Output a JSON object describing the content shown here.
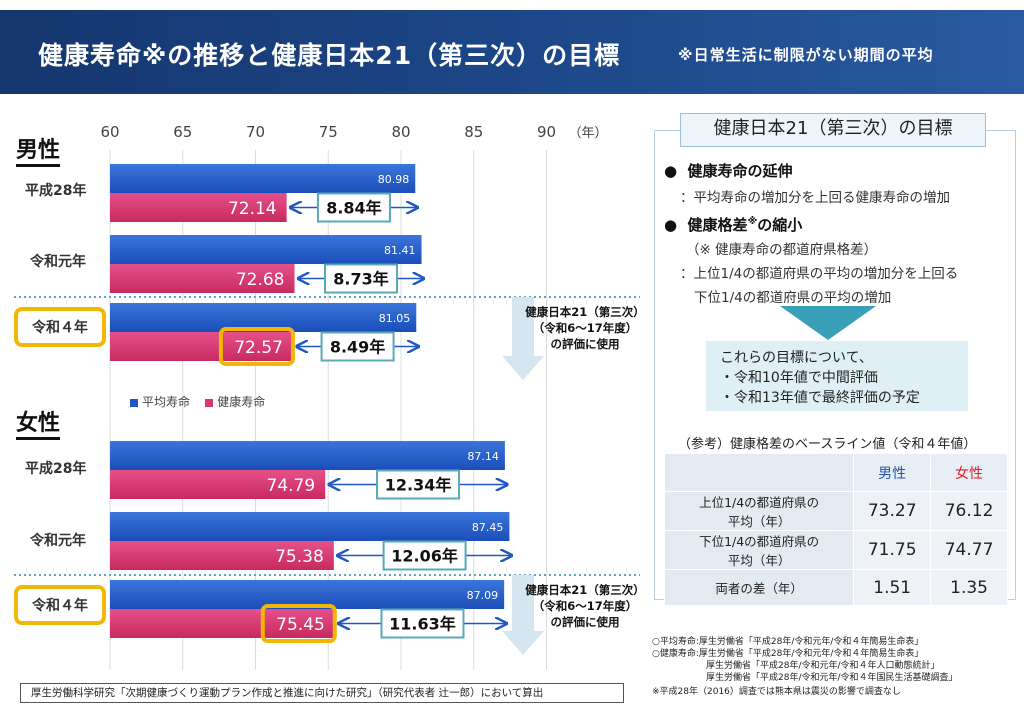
{
  "header": {
    "title": "健康寿命※の推移と健康日本21（第三次）の目標",
    "subtitle": "※日常生活に制限がない期間の平均"
  },
  "chart_data": {
    "type": "bar",
    "orientation": "horizontal",
    "xlim": [
      60,
      90
    ],
    "ticks": [
      "60",
      "65",
      "70",
      "75",
      "80",
      "85",
      "90"
    ],
    "unit_label": "（年）",
    "legend": [
      "平均寿命",
      "健康寿命"
    ],
    "colors": {
      "life": "#1f58c4",
      "healthy": "#d8386b"
    },
    "sections": [
      {
        "name": "男性",
        "rows": [
          {
            "label": "平成28年",
            "life": 80.98,
            "life_label": "80.98",
            "healthy": 72.14,
            "healthy_label": "72.14",
            "gap": "8.84年",
            "highlight": false
          },
          {
            "label": "令和元年",
            "life": 81.41,
            "life_label": "81.41",
            "healthy": 72.68,
            "healthy_label": "72.68",
            "gap": "8.73年",
            "highlight": false
          },
          {
            "label": "令和４年",
            "life": 81.05,
            "life_label": "81.05",
            "healthy": 72.57,
            "healthy_label": "72.57",
            "gap": "8.49年",
            "highlight": true
          }
        ]
      },
      {
        "name": "女性",
        "rows": [
          {
            "label": "平成28年",
            "life": 87.14,
            "life_label": "87.14",
            "healthy": 74.79,
            "healthy_label": "74.79",
            "gap": "12.34年",
            "highlight": false
          },
          {
            "label": "令和元年",
            "life": 87.45,
            "life_label": "87.45",
            "healthy": 75.38,
            "healthy_label": "75.38",
            "gap": "12.06年",
            "highlight": false
          },
          {
            "label": "令和４年",
            "life": 87.09,
            "life_label": "87.09",
            "healthy": 75.45,
            "healthy_label": "75.45",
            "gap": "11.63年",
            "highlight": true
          }
        ]
      }
    ]
  },
  "eval_note": {
    "line1": "健康日本21（第三次）",
    "line2": "（令和6～17年度）",
    "line3": "の評価に使用"
  },
  "right_panel": {
    "title": "健康日本21（第三次）の目標",
    "item1_title": "健康寿命の延伸",
    "item1_desc": "：平均寿命の増加分を上回る健康寿命の増加",
    "item2_title": "健康格差",
    "item2_sup": "※",
    "item2_tail": "の縮小",
    "item2_note": "（※ 健康寿命の都道府県格差）",
    "item2_desc1": "：上位1/4の都道府県の平均の増加分を上回る",
    "item2_desc2": "下位1/4の都道府県の平均の増加",
    "goal_line1": "これらの目標について、",
    "goal_line2": "・令和10年値で中間評価",
    "goal_line3": "・令和13年値で最終評価の予定",
    "ref_title": "（参考）健康格差のベースライン値（令和４年値）",
    "table": {
      "head_male": "男性",
      "head_female": "女性",
      "rows": [
        {
          "label1": "上位1/4の都道府県の",
          "label2": "平均（年）",
          "male": "73.27",
          "female": "76.12"
        },
        {
          "label1": "下位1/4の都道府県の",
          "label2": "平均（年）",
          "male": "71.75",
          "female": "74.77"
        },
        {
          "label1": "両者の差（年）",
          "label2": "",
          "male": "1.51",
          "female": "1.35"
        }
      ]
    }
  },
  "sources": {
    "line1": "○平均寿命:厚生労働省「平成28年/令和元年/令和４年簡易生命表」",
    "line2": "○健康寿命:厚生労働省「平成28年/令和元年/令和４年簡易生命表」",
    "line3": "厚生労働省「平成28年/令和元年/令和４年人口動態統計」",
    "line4": "厚生労働省「平成28年/令和元年/令和４年国民生活基礎調査」",
    "line5": "※平成28年（2016）調査では熊本県は震災の影響で調査なし"
  },
  "footer": "厚生労働科学研究「次期健康づくり運動プラン作成と推進に向けた研究」（研究代表者 辻一郎）において算出"
}
